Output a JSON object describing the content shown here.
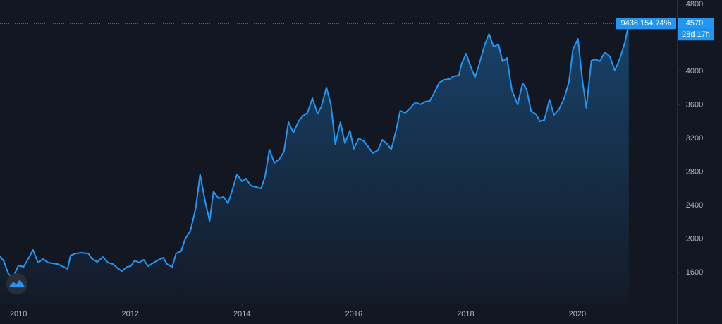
{
  "chart_data": {
    "type": "area",
    "x": [
      2009.67,
      2009.74,
      2009.82,
      2009.9,
      2010,
      2010.09,
      2010.18,
      2010.26,
      2010.35,
      2010.44,
      2010.53,
      2010.71,
      2010.81,
      2010.88,
      2010.93,
      2011.02,
      2011.12,
      2011.25,
      2011.31,
      2011.41,
      2011.51,
      2011.6,
      2011.69,
      2011.78,
      2011.85,
      2011.94,
      2012.01,
      2012.08,
      2012.16,
      2012.24,
      2012.32,
      2012.42,
      2012.51,
      2012.59,
      2012.66,
      2012.75,
      2012.82,
      2012.91,
      2012.98,
      2013.08,
      2013.17,
      2013.25,
      2013.34,
      2013.42,
      2013.49,
      2013.58,
      2013.67,
      2013.75,
      2013.83,
      2013.91,
      2014,
      2014.07,
      2014.16,
      2014.25,
      2014.34,
      2014.41,
      2014.49,
      2014.58,
      2014.67,
      2014.75,
      2014.83,
      2014.92,
      2015.01,
      2015.08,
      2015.17,
      2015.26,
      2015.35,
      2015.42,
      2015.51,
      2015.59,
      2015.67,
      2015.76,
      2015.84,
      2015.93,
      2016,
      2016.09,
      2016.18,
      2016.25,
      2016.34,
      2016.43,
      2016.51,
      2016.6,
      2016.67,
      2016.76,
      2016.83,
      2016.92,
      2017.01,
      2017.1,
      2017.19,
      2017.28,
      2017.36,
      2017.45,
      2017.53,
      2017.62,
      2017.71,
      2017.79,
      2017.88,
      2017.93,
      2018.01,
      2018.08,
      2018.17,
      2018.25,
      2018.34,
      2018.42,
      2018.5,
      2018.59,
      2018.66,
      2018.74,
      2018.83,
      2018.93,
      2019.02,
      2019.09,
      2019.17,
      2019.26,
      2019.33,
      2019.41,
      2019.5,
      2019.58,
      2019.67,
      2019.76,
      2019.85,
      2019.92,
      2020.01,
      2020.09,
      2020.16,
      2020.25,
      2020.33,
      2020.4,
      2020.49,
      2020.58,
      2020.67,
      2020.76,
      2020.85,
      2020.92
    ],
    "values": [
      1794,
      1735,
      1583,
      1541,
      1684,
      1667,
      1768,
      1870,
      1718,
      1760,
      1718,
      1700,
      1667,
      1642,
      1802,
      1827,
      1836,
      1827,
      1768,
      1726,
      1785,
      1718,
      1700,
      1650,
      1617,
      1667,
      1676,
      1743,
      1718,
      1752,
      1676,
      1718,
      1752,
      1777,
      1700,
      1667,
      1827,
      1853,
      1996,
      2105,
      2366,
      2770,
      2450,
      2215,
      2568,
      2484,
      2501,
      2425,
      2594,
      2770,
      2686,
      2720,
      2636,
      2619,
      2602,
      2737,
      3065,
      2905,
      2955,
      3040,
      3394,
      3267,
      3402,
      3461,
      3503,
      3680,
      3494,
      3579,
      3806,
      3604,
      3132,
      3394,
      3141,
      3292,
      3074,
      3200,
      3166,
      3107,
      3023,
      3057,
      3183,
      3132,
      3065,
      3301,
      3528,
      3503,
      3562,
      3629,
      3604,
      3638,
      3646,
      3756,
      3865,
      3899,
      3908,
      3941,
      3950,
      4092,
      4210,
      4075,
      3924,
      4101,
      4311,
      4446,
      4294,
      4320,
      4118,
      4160,
      3772,
      3604,
      3857,
      3789,
      3528,
      3486,
      3402,
      3419,
      3663,
      3477,
      3545,
      3671,
      3874,
      4261,
      4387,
      3890,
      3562,
      4126,
      4143,
      4118,
      4227,
      4177,
      4008,
      4151,
      4345,
      4570
    ],
    "color": "#2196f3",
    "xlim": [
      2009.67,
      2021.78
    ],
    "xticks": [
      2010,
      2012,
      2014,
      2016,
      2018,
      2020
    ],
    "ylim": [
      1230,
      4850
    ],
    "yticks": [
      1600,
      2000,
      2400,
      2800,
      3200,
      3600,
      4000,
      4400,
      4800
    ],
    "grid": false,
    "annotations": [
      "9436 154.74%",
      "28d 17h"
    ]
  }
}
